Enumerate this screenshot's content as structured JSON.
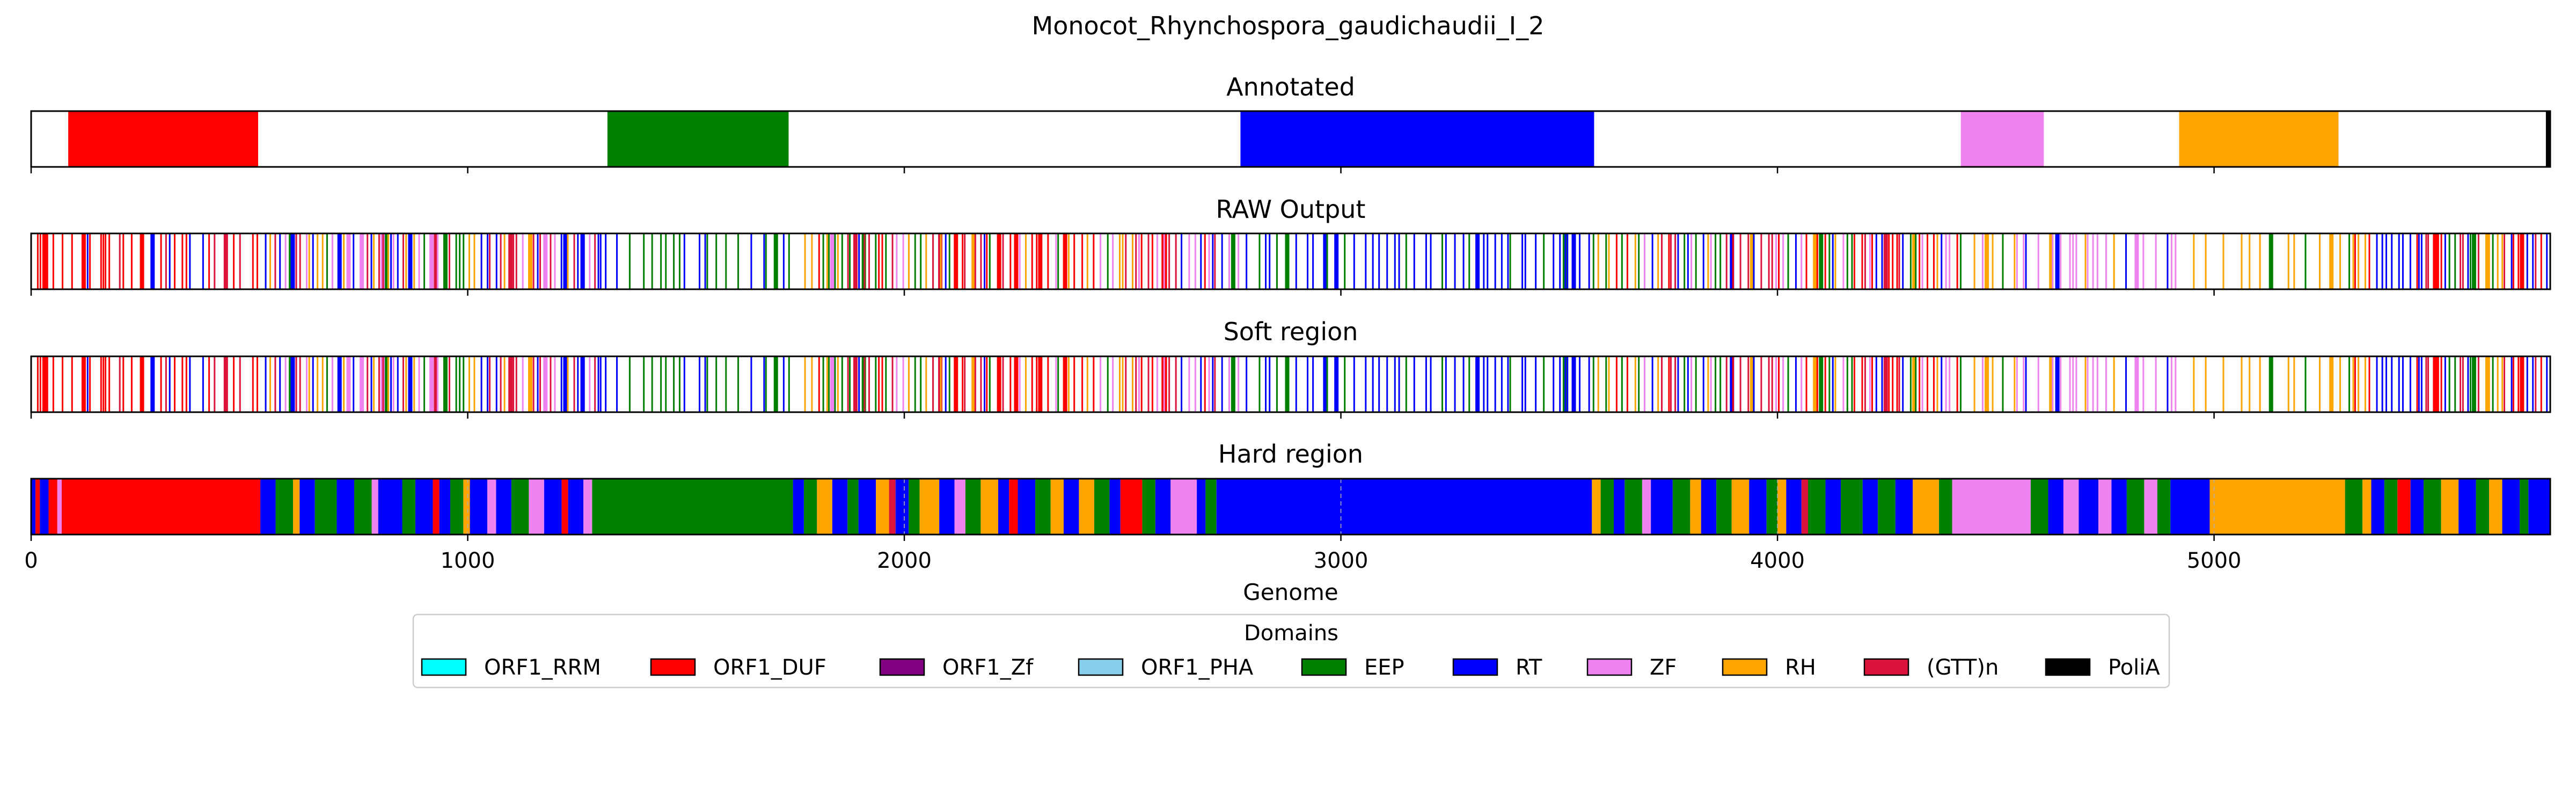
{
  "chart_data": {
    "type": "bar",
    "title": "Monocot_Rhynchospora_gaudichaudii_I_2",
    "xlabel": "Genome",
    "xlim": [
      0,
      5770
    ],
    "x_ticks": [
      "0",
      "1000",
      "2000",
      "3000",
      "4000",
      "5000"
    ],
    "legend": {
      "title": "Domains",
      "placement": "bottom-center",
      "items": [
        {
          "label": "ORF1_RRM",
          "color": "#00ffff"
        },
        {
          "label": "ORF1_DUF",
          "color": "#ff0000"
        },
        {
          "label": "ORF1_Zf",
          "color": "#800080"
        },
        {
          "label": "ORF1_PHA",
          "color": "#87ceeb"
        },
        {
          "label": "EEP",
          "color": "#008000"
        },
        {
          "label": "RT",
          "color": "#0000ff"
        },
        {
          "label": "ZF",
          "color": "#ee82ee"
        },
        {
          "label": "RH",
          "color": "#ffa500"
        },
        {
          "label": "(GTT)n",
          "color": "#dc143c"
        },
        {
          "label": "PoliA",
          "color": "#000000"
        }
      ]
    },
    "panels": [
      {
        "title": "Annotated",
        "segments": [
          {
            "domain": "ORF1_DUF",
            "start": 85,
            "end": 520
          },
          {
            "domain": "EEP",
            "start": 1320,
            "end": 1735
          },
          {
            "domain": "RT",
            "start": 2770,
            "end": 3580
          },
          {
            "domain": "ZF",
            "start": 4420,
            "end": 4610
          },
          {
            "domain": "RH",
            "start": 4920,
            "end": 5285
          },
          {
            "domain": "PoliA",
            "start": 5760,
            "end": 5770
          }
        ]
      },
      {
        "title": "RAW Output",
        "seed": 11,
        "zones": [
          {
            "start": 0,
            "end": 520,
            "domains": [
              "RT",
              "ORF1_DUF",
              "ORF1_DUF",
              "ORF1_DUF",
              "(GTT)n"
            ],
            "density": 0.06
          },
          {
            "start": 520,
            "end": 1320,
            "domains": [
              "RT",
              "RT",
              "EEP",
              "RH",
              "ZF",
              "(GTT)n"
            ],
            "density": 0.13
          },
          {
            "start": 1320,
            "end": 1750,
            "domains": [
              "EEP",
              "EEP",
              "EEP",
              "RT"
            ],
            "density": 0.05
          },
          {
            "start": 1750,
            "end": 2770,
            "domains": [
              "RT",
              "EEP",
              "RH",
              "(GTT)n",
              "ZF",
              "ORF1_DUF"
            ],
            "density": 0.11
          },
          {
            "start": 2770,
            "end": 3580,
            "domains": [
              "RT",
              "RT",
              "RT",
              "RT",
              "EEP"
            ],
            "density": 0.06
          },
          {
            "start": 3580,
            "end": 4420,
            "domains": [
              "RT",
              "EEP",
              "RH",
              "(GTT)n",
              "ZF",
              "ORF1_DUF"
            ],
            "density": 0.11
          },
          {
            "start": 4420,
            "end": 4920,
            "domains": [
              "ZF",
              "ZF",
              "ZF",
              "RH",
              "RT",
              "EEP"
            ],
            "density": 0.06
          },
          {
            "start": 4920,
            "end": 5300,
            "domains": [
              "RH",
              "RH",
              "RH",
              "EEP"
            ],
            "density": 0.04
          },
          {
            "start": 5300,
            "end": 5770,
            "domains": [
              "RT",
              "RT",
              "EEP",
              "RH",
              "(GTT)n",
              "ORF1_DUF"
            ],
            "density": 0.12
          }
        ]
      },
      {
        "title": "Soft region",
        "seed": 11,
        "zones": [
          {
            "start": 0,
            "end": 520,
            "domains": [
              "RT",
              "ORF1_DUF",
              "ORF1_DUF",
              "ORF1_DUF",
              "(GTT)n"
            ],
            "density": 0.06
          },
          {
            "start": 520,
            "end": 1320,
            "domains": [
              "RT",
              "RT",
              "EEP",
              "RH",
              "ZF",
              "(GTT)n"
            ],
            "density": 0.13
          },
          {
            "start": 1320,
            "end": 1750,
            "domains": [
              "EEP",
              "EEP",
              "EEP",
              "RT"
            ],
            "density": 0.05
          },
          {
            "start": 1750,
            "end": 2770,
            "domains": [
              "RT",
              "EEP",
              "RH",
              "(GTT)n",
              "ZF",
              "ORF1_DUF"
            ],
            "density": 0.11
          },
          {
            "start": 2770,
            "end": 3580,
            "domains": [
              "RT",
              "RT",
              "RT",
              "RT",
              "EEP"
            ],
            "density": 0.06
          },
          {
            "start": 3580,
            "end": 4420,
            "domains": [
              "RT",
              "EEP",
              "RH",
              "(GTT)n",
              "ZF",
              "ORF1_DUF"
            ],
            "density": 0.11
          },
          {
            "start": 4420,
            "end": 4920,
            "domains": [
              "ZF",
              "ZF",
              "ZF",
              "RH",
              "RT",
              "EEP"
            ],
            "density": 0.06
          },
          {
            "start": 4920,
            "end": 5300,
            "domains": [
              "RH",
              "RH",
              "RH",
              "EEP"
            ],
            "density": 0.04
          },
          {
            "start": 5300,
            "end": 5770,
            "domains": [
              "RT",
              "RT",
              "EEP",
              "RH",
              "(GTT)n",
              "ORF1_DUF"
            ],
            "density": 0.12
          }
        ]
      },
      {
        "title": "Hard region",
        "segments": [
          {
            "domain": "RT",
            "start": 0,
            "end": 10
          },
          {
            "domain": "ORF1_DUF",
            "start": 10,
            "end": 20
          },
          {
            "domain": "RT",
            "start": 20,
            "end": 40
          },
          {
            "domain": "ORF1_DUF",
            "start": 40,
            "end": 60
          },
          {
            "domain": "ZF",
            "start": 60,
            "end": 70
          },
          {
            "domain": "ORF1_DUF",
            "start": 70,
            "end": 525
          },
          {
            "domain": "RT",
            "start": 525,
            "end": 560
          },
          {
            "domain": "EEP",
            "start": 560,
            "end": 600
          },
          {
            "domain": "RH",
            "start": 600,
            "end": 615
          },
          {
            "domain": "RT",
            "start": 615,
            "end": 650
          },
          {
            "domain": "EEP",
            "start": 650,
            "end": 700
          },
          {
            "domain": "RT",
            "start": 700,
            "end": 740
          },
          {
            "domain": "EEP",
            "start": 740,
            "end": 780
          },
          {
            "domain": "ZF",
            "start": 780,
            "end": 795
          },
          {
            "domain": "RT",
            "start": 795,
            "end": 850
          },
          {
            "domain": "EEP",
            "start": 850,
            "end": 880
          },
          {
            "domain": "RT",
            "start": 880,
            "end": 920
          },
          {
            "domain": "ORF1_DUF",
            "start": 920,
            "end": 935
          },
          {
            "domain": "RT",
            "start": 935,
            "end": 960
          },
          {
            "domain": "EEP",
            "start": 960,
            "end": 990
          },
          {
            "domain": "RH",
            "start": 990,
            "end": 1005
          },
          {
            "domain": "RT",
            "start": 1005,
            "end": 1045
          },
          {
            "domain": "ZF",
            "start": 1045,
            "end": 1065
          },
          {
            "domain": "RT",
            "start": 1065,
            "end": 1100
          },
          {
            "domain": "EEP",
            "start": 1100,
            "end": 1140
          },
          {
            "domain": "ZF",
            "start": 1140,
            "end": 1175
          },
          {
            "domain": "RT",
            "start": 1175,
            "end": 1215
          },
          {
            "domain": "ORF1_DUF",
            "start": 1215,
            "end": 1230
          },
          {
            "domain": "RT",
            "start": 1230,
            "end": 1265
          },
          {
            "domain": "ZF",
            "start": 1265,
            "end": 1285
          },
          {
            "domain": "EEP",
            "start": 1285,
            "end": 1745
          },
          {
            "domain": "RT",
            "start": 1745,
            "end": 1770
          },
          {
            "domain": "EEP",
            "start": 1770,
            "end": 1800
          },
          {
            "domain": "RH",
            "start": 1800,
            "end": 1835
          },
          {
            "domain": "RT",
            "start": 1835,
            "end": 1870
          },
          {
            "domain": "EEP",
            "start": 1870,
            "end": 1895
          },
          {
            "domain": "RT",
            "start": 1895,
            "end": 1935
          },
          {
            "domain": "RH",
            "start": 1935,
            "end": 1965
          },
          {
            "domain": "(GTT)n",
            "start": 1965,
            "end": 1980
          },
          {
            "domain": "RT",
            "start": 1980,
            "end": 2010
          },
          {
            "domain": "EEP",
            "start": 2010,
            "end": 2035
          },
          {
            "domain": "RH",
            "start": 2035,
            "end": 2080
          },
          {
            "domain": "RT",
            "start": 2080,
            "end": 2115
          },
          {
            "domain": "ZF",
            "start": 2115,
            "end": 2140
          },
          {
            "domain": "EEP",
            "start": 2140,
            "end": 2175
          },
          {
            "domain": "RH",
            "start": 2175,
            "end": 2215
          },
          {
            "domain": "RT",
            "start": 2215,
            "end": 2240
          },
          {
            "domain": "ORF1_DUF",
            "start": 2240,
            "end": 2260
          },
          {
            "domain": "RT",
            "start": 2260,
            "end": 2300
          },
          {
            "domain": "EEP",
            "start": 2300,
            "end": 2335
          },
          {
            "domain": "RH",
            "start": 2335,
            "end": 2365
          },
          {
            "domain": "RT",
            "start": 2365,
            "end": 2400
          },
          {
            "domain": "RH",
            "start": 2400,
            "end": 2435
          },
          {
            "domain": "EEP",
            "start": 2435,
            "end": 2470
          },
          {
            "domain": "RT",
            "start": 2470,
            "end": 2495
          },
          {
            "domain": "ORF1_DUF",
            "start": 2495,
            "end": 2545
          },
          {
            "domain": "EEP",
            "start": 2545,
            "end": 2575
          },
          {
            "domain": "RT",
            "start": 2575,
            "end": 2610
          },
          {
            "domain": "ZF",
            "start": 2610,
            "end": 2670
          },
          {
            "domain": "RT",
            "start": 2670,
            "end": 2690
          },
          {
            "domain": "EEP",
            "start": 2690,
            "end": 2715
          },
          {
            "domain": "RT",
            "start": 2715,
            "end": 3575
          },
          {
            "domain": "RH",
            "start": 3575,
            "end": 3595
          },
          {
            "domain": "EEP",
            "start": 3595,
            "end": 3625
          },
          {
            "domain": "RT",
            "start": 3625,
            "end": 3650
          },
          {
            "domain": "EEP",
            "start": 3650,
            "end": 3690
          },
          {
            "domain": "ZF",
            "start": 3690,
            "end": 3710
          },
          {
            "domain": "RT",
            "start": 3710,
            "end": 3760
          },
          {
            "domain": "EEP",
            "start": 3760,
            "end": 3800
          },
          {
            "domain": "RH",
            "start": 3800,
            "end": 3825
          },
          {
            "domain": "RT",
            "start": 3825,
            "end": 3860
          },
          {
            "domain": "EEP",
            "start": 3860,
            "end": 3895
          },
          {
            "domain": "RH",
            "start": 3895,
            "end": 3935
          },
          {
            "domain": "RT",
            "start": 3935,
            "end": 3975
          },
          {
            "domain": "EEP",
            "start": 3975,
            "end": 4000
          },
          {
            "domain": "RH",
            "start": 4000,
            "end": 4020
          },
          {
            "domain": "RT",
            "start": 4020,
            "end": 4055
          },
          {
            "domain": "(GTT)n",
            "start": 4055,
            "end": 4070
          },
          {
            "domain": "EEP",
            "start": 4070,
            "end": 4110
          },
          {
            "domain": "RT",
            "start": 4110,
            "end": 4145
          },
          {
            "domain": "EEP",
            "start": 4145,
            "end": 4195
          },
          {
            "domain": "RT",
            "start": 4195,
            "end": 4230
          },
          {
            "domain": "EEP",
            "start": 4230,
            "end": 4270
          },
          {
            "domain": "RT",
            "start": 4270,
            "end": 4310
          },
          {
            "domain": "RH",
            "start": 4310,
            "end": 4370
          },
          {
            "domain": "EEP",
            "start": 4370,
            "end": 4400
          },
          {
            "domain": "ZF",
            "start": 4400,
            "end": 4580
          },
          {
            "domain": "EEP",
            "start": 4580,
            "end": 4620
          },
          {
            "domain": "RT",
            "start": 4620,
            "end": 4655
          },
          {
            "domain": "ZF",
            "start": 4655,
            "end": 4690
          },
          {
            "domain": "RT",
            "start": 4690,
            "end": 4735
          },
          {
            "domain": "ZF",
            "start": 4735,
            "end": 4765
          },
          {
            "domain": "RT",
            "start": 4765,
            "end": 4800
          },
          {
            "domain": "EEP",
            "start": 4800,
            "end": 4840
          },
          {
            "domain": "ZF",
            "start": 4840,
            "end": 4870
          },
          {
            "domain": "EEP",
            "start": 4870,
            "end": 4900
          },
          {
            "domain": "RT",
            "start": 4900,
            "end": 4990
          },
          {
            "domain": "RH",
            "start": 4990,
            "end": 5300
          },
          {
            "domain": "EEP",
            "start": 5300,
            "end": 5340
          },
          {
            "domain": "RH",
            "start": 5340,
            "end": 5360
          },
          {
            "domain": "RT",
            "start": 5360,
            "end": 5390
          },
          {
            "domain": "EEP",
            "start": 5390,
            "end": 5420
          },
          {
            "domain": "ORF1_DUF",
            "start": 5420,
            "end": 5450
          },
          {
            "domain": "RT",
            "start": 5450,
            "end": 5480
          },
          {
            "domain": "EEP",
            "start": 5480,
            "end": 5520
          },
          {
            "domain": "RH",
            "start": 5520,
            "end": 5560
          },
          {
            "domain": "RT",
            "start": 5560,
            "end": 5600
          },
          {
            "domain": "EEP",
            "start": 5600,
            "end": 5630
          },
          {
            "domain": "RH",
            "start": 5630,
            "end": 5660
          },
          {
            "domain": "RT",
            "start": 5660,
            "end": 5700
          },
          {
            "domain": "EEP",
            "start": 5700,
            "end": 5720
          },
          {
            "domain": "RT",
            "start": 5720,
            "end": 5770
          }
        ]
      }
    ]
  }
}
